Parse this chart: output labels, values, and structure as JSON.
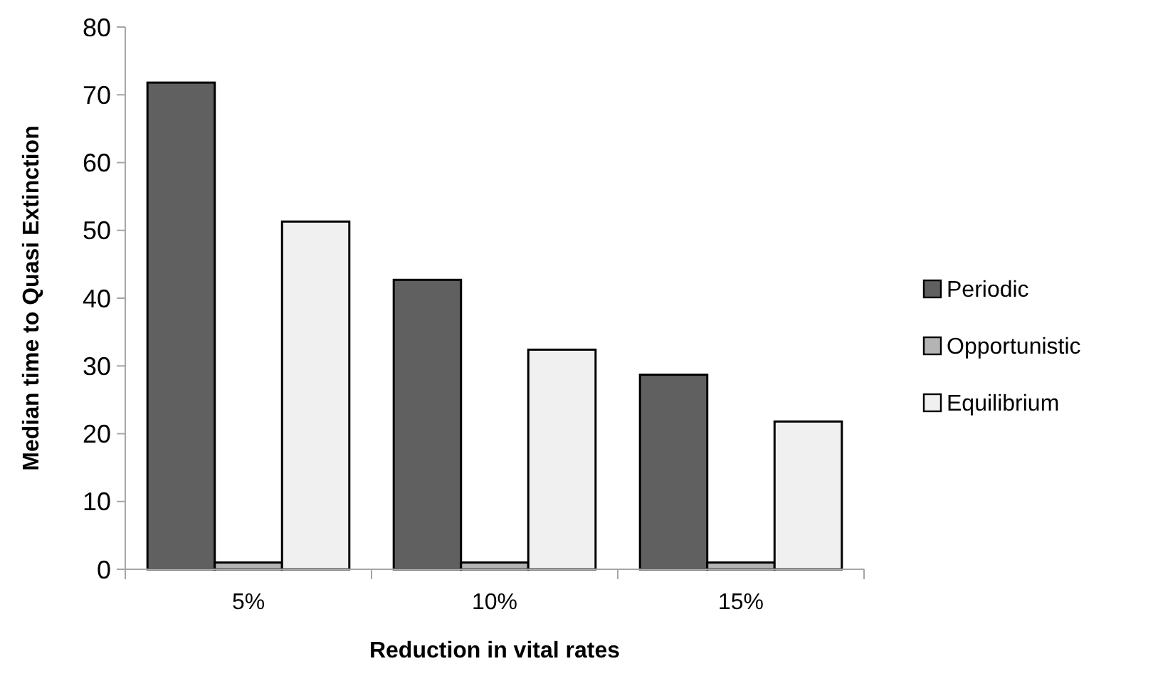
{
  "chart_data": {
    "type": "bar",
    "xlabel": "Reduction in vital rates",
    "ylabel": "Median time to Quasi Extinction",
    "categories": [
      "5%",
      "10%",
      "15%"
    ],
    "series": [
      {
        "name": "Periodic",
        "color": "#606060",
        "values": [
          71.8,
          42.7,
          28.7
        ]
      },
      {
        "name": "Opportunistic",
        "color": "#b4b4b4",
        "values": [
          1,
          1,
          1
        ]
      },
      {
        "name": "Equilibrium",
        "color": "#f0f0f0",
        "values": [
          51.3,
          32.4,
          21.8
        ]
      }
    ],
    "ylim": [
      0,
      80
    ],
    "yticks": [
      0,
      10,
      20,
      30,
      40,
      50,
      60,
      70,
      80
    ],
    "grid": false,
    "legend": "right"
  }
}
